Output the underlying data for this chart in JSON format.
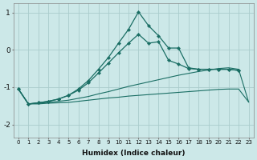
{
  "background_color": "#cce8e8",
  "grid_color": "#aacccc",
  "line_color": "#1a6e64",
  "xlabel": "Humidex (Indice chaleur)",
  "ylim": [
    -2.35,
    1.25
  ],
  "yticks": [
    -2,
    -1,
    0,
    1
  ],
  "xlim": [
    -0.5,
    23.5
  ],
  "x_ticks": [
    0,
    1,
    2,
    3,
    4,
    5,
    6,
    7,
    8,
    9,
    10,
    11,
    12,
    13,
    14,
    15,
    16,
    17,
    18,
    19,
    20,
    21,
    22,
    23
  ],
  "series": [
    {
      "x": [
        0,
        1,
        2,
        3,
        4,
        5,
        6,
        7,
        8,
        9,
        10,
        11,
        12,
        13,
        14,
        15,
        16,
        17,
        18,
        19,
        20,
        21,
        22,
        23
      ],
      "y": [
        -1.05,
        -1.45,
        -1.45,
        -1.43,
        -1.42,
        -1.41,
        -1.38,
        -1.35,
        -1.32,
        -1.29,
        -1.27,
        -1.24,
        -1.22,
        -1.2,
        -1.18,
        -1.16,
        -1.14,
        -1.12,
        -1.1,
        -1.08,
        -1.06,
        -1.05,
        -1.05,
        -1.4
      ],
      "marker": false,
      "lw": 0.8
    },
    {
      "x": [
        0,
        1,
        2,
        3,
        4,
        5,
        6,
        7,
        8,
        9,
        10,
        11,
        12,
        13,
        14,
        15,
        16,
        17,
        18,
        19,
        20,
        21,
        22,
        23
      ],
      "y": [
        -1.05,
        -1.45,
        -1.43,
        -1.41,
        -1.38,
        -1.35,
        -1.3,
        -1.25,
        -1.18,
        -1.12,
        -1.05,
        -0.98,
        -0.92,
        -0.86,
        -0.8,
        -0.74,
        -0.68,
        -0.63,
        -0.58,
        -0.54,
        -0.5,
        -0.48,
        -0.52,
        -1.4
      ],
      "marker": false,
      "lw": 0.8
    },
    {
      "x": [
        0,
        1,
        2,
        3,
        4,
        5,
        6,
        7,
        8,
        9,
        10,
        11,
        12,
        13,
        14,
        15,
        16,
        17,
        18,
        19,
        20,
        21,
        22
      ],
      "y": [
        -1.05,
        -1.45,
        -1.42,
        -1.38,
        -1.32,
        -1.22,
        -1.08,
        -0.88,
        -0.62,
        -0.35,
        -0.08,
        0.18,
        0.42,
        0.18,
        0.22,
        -0.28,
        -0.38,
        -0.5,
        -0.52,
        -0.52,
        -0.52,
        -0.52,
        -0.55
      ],
      "marker": true,
      "lw": 0.9
    },
    {
      "x": [
        0,
        1,
        2,
        3,
        4,
        5,
        6,
        7,
        8,
        9,
        10,
        11,
        12,
        13,
        14,
        15,
        16,
        17,
        18,
        19,
        20,
        21,
        22
      ],
      "y": [
        -1.05,
        -1.45,
        -1.42,
        -1.38,
        -1.32,
        -1.22,
        -1.05,
        -0.82,
        -0.52,
        -0.2,
        0.18,
        0.55,
        1.02,
        0.65,
        0.38,
        0.05,
        0.05,
        -0.48,
        -0.52,
        -0.52,
        -0.52,
        -0.52,
        -0.55
      ],
      "marker": true,
      "lw": 0.9
    }
  ]
}
